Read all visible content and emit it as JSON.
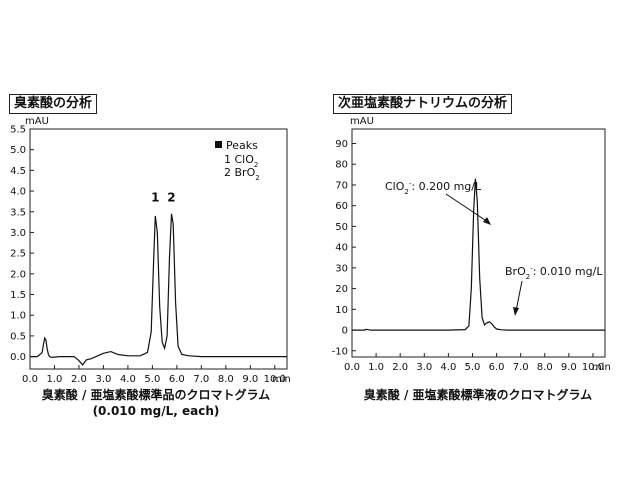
{
  "panels": [
    {
      "title": "臭素酸の分析",
      "caption_line1": "臭素酸 / 亜塩素酸標準品のクロマトグラム",
      "caption_line2": "(0.010 mg/L, each)",
      "legend_title": "Peaks",
      "legend_items": [
        "1 ClO",
        "2 BrO"
      ]
    },
    {
      "title": "次亜塩素酸ナトリウムの分析",
      "caption_line1": "臭素酸 / 亜塩素酸標準液のクロマトグラム",
      "annotation1": "ClO",
      "annotation1_value": ": 0.200 mg/L",
      "annotation2": "BrO",
      "annotation2_value": ": 0.010 mg/L"
    }
  ],
  "chart_data": [
    {
      "type": "line",
      "title": "臭素酸の分析",
      "ylabel": "mAU",
      "xlabel": "min",
      "xlim": [
        0,
        10.5
      ],
      "ylim": [
        -0.3,
        5.5
      ],
      "x_ticks": [
        0.0,
        1.0,
        2.0,
        3.0,
        4.0,
        5.0,
        6.0,
        7.0,
        8.0,
        9.0,
        10.0
      ],
      "x_tick_labels": [
        "0.0",
        "1.0",
        "2.0",
        "3.0",
        "4.0",
        "5.0",
        "6.0",
        "7.0",
        "8.0",
        "9.0",
        "10.0"
      ],
      "y_ticks": [
        0.0,
        0.5,
        1.0,
        1.5,
        2.0,
        2.5,
        3.0,
        3.5,
        4.0,
        4.5,
        5.0,
        5.5
      ],
      "y_tick_labels": [
        "0.0",
        "0.5",
        "1.0",
        "1.5",
        "2.0",
        "2.5",
        "3.0",
        "3.5",
        "4.0",
        "4.5",
        "5.0",
        "5.5"
      ],
      "peak_labels": [
        {
          "text": "1",
          "x": 5.12,
          "y": 3.55
        },
        {
          "text": "2",
          "x": 5.78,
          "y": 3.55
        }
      ],
      "x": [
        0.0,
        0.3,
        0.5,
        0.55,
        0.6,
        0.65,
        0.7,
        0.75,
        0.8,
        0.9,
        1.2,
        1.8,
        2.0,
        2.15,
        2.3,
        2.5,
        2.7,
        3.0,
        3.3,
        3.6,
        4.0,
        4.5,
        4.8,
        4.95,
        5.05,
        5.12,
        5.2,
        5.3,
        5.4,
        5.5,
        5.6,
        5.7,
        5.78,
        5.85,
        5.95,
        6.05,
        6.2,
        6.5,
        7.0,
        8.0,
        9.0,
        10.0,
        10.5
      ],
      "y": [
        0.0,
        0.0,
        0.1,
        0.3,
        0.45,
        0.4,
        0.2,
        0.05,
        0.0,
        -0.02,
        0.0,
        0.0,
        -0.1,
        -0.2,
        -0.08,
        -0.05,
        0.0,
        0.08,
        0.12,
        0.05,
        0.02,
        0.02,
        0.1,
        0.6,
        2.3,
        3.4,
        3.0,
        1.2,
        0.35,
        0.2,
        0.5,
        2.4,
        3.45,
        3.2,
        1.3,
        0.25,
        0.05,
        0.02,
        0.0,
        0.0,
        0.0,
        0.0,
        0.0
      ]
    },
    {
      "type": "line",
      "title": "次亜塩素酸ナトリウムの分析",
      "ylabel": "mAU",
      "xlabel": "min",
      "xlim": [
        0,
        10.5
      ],
      "ylim": [
        -13,
        97
      ],
      "x_ticks": [
        0.0,
        1.0,
        2.0,
        3.0,
        4.0,
        5.0,
        6.0,
        7.0,
        8.0,
        9.0,
        10.0
      ],
      "x_tick_labels": [
        "0.0",
        "1.0",
        "2.0",
        "3.0",
        "4.0",
        "5.0",
        "6.0",
        "7.0",
        "8.0",
        "9.0",
        "10.0"
      ],
      "y_ticks": [
        -10,
        0,
        10,
        20,
        30,
        40,
        50,
        60,
        70,
        80,
        90
      ],
      "y_tick_labels": [
        "-10",
        "0",
        "10",
        "20",
        "30",
        "40",
        "50",
        "60",
        "70",
        "80",
        "90"
      ],
      "x": [
        0.0,
        0.5,
        0.6,
        0.7,
        0.8,
        1.0,
        2.0,
        3.0,
        4.0,
        4.7,
        4.85,
        4.95,
        5.05,
        5.12,
        5.2,
        5.3,
        5.4,
        5.5,
        5.6,
        5.7,
        5.8,
        5.9,
        6.0,
        6.2,
        6.5,
        7.0,
        8.0,
        9.0,
        10.0,
        10.5
      ],
      "y": [
        0.0,
        0.0,
        0.3,
        0.1,
        0.0,
        0.0,
        0.0,
        0.0,
        0.0,
        0.2,
        2.0,
        20.0,
        58.0,
        73.0,
        62.0,
        25.0,
        6.0,
        2.5,
        3.5,
        4.0,
        3.0,
        1.5,
        0.5,
        0.1,
        0.0,
        0.0,
        0.0,
        0.0,
        0.0,
        0.0
      ],
      "annotations": [
        {
          "text": "ClO₂⁻: 0.200 mg/L",
          "x": 5.05,
          "y": 57
        },
        {
          "text": "BrO₂⁻: 0.010 mg/L",
          "x": 5.75,
          "y": 4
        }
      ]
    }
  ]
}
